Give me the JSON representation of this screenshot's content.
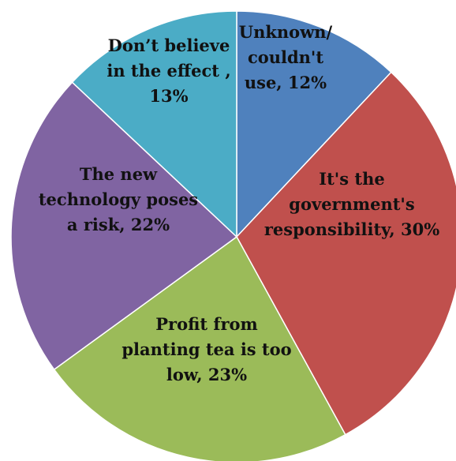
{
  "chart_data": {
    "type": "pie",
    "start_angle_deg": 0,
    "direction": "clockwise",
    "slices": [
      {
        "name": "Unknown/ couldn't use",
        "value": 12,
        "color": "#4F81BD",
        "label_lines": [
          "Unknown/",
          "couldn't",
          "use, 12%"
        ]
      },
      {
        "name": "It's the government's responsibility",
        "value": 30,
        "color": "#C0504D",
        "label_lines": [
          "It's  the",
          "government's",
          "responsibility, 30%"
        ]
      },
      {
        "name": "Profit from planting tea is too low",
        "value": 23,
        "color": "#9BBB59",
        "label_lines": [
          "Profit from",
          "planting tea is too",
          "low, 23%"
        ]
      },
      {
        "name": "The new technology poses a risk",
        "value": 22,
        "color": "#8064A2",
        "label_lines": [
          "The new",
          "technology poses",
          "a risk, 22%"
        ]
      },
      {
        "name": "Don't believe in the effect",
        "value": 13,
        "color": "#4BACC6",
        "label_lines": [
          "Don’t believe",
          "in the effect ,",
          "13%"
        ]
      }
    ]
  }
}
